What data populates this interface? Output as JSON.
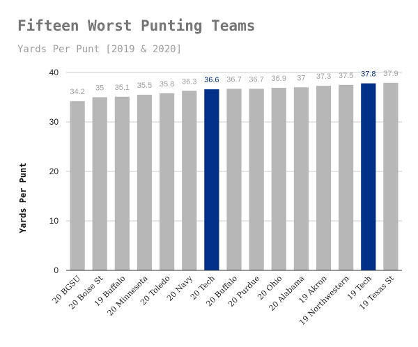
{
  "chart_data": {
    "type": "bar",
    "title": "Fifteen Worst Punting Teams",
    "subtitle": "Yards Per Punt [2019 & 2020]",
    "ylabel": "Yards Per Punt",
    "xlabel": "",
    "ylim": [
      0,
      40
    ],
    "yticks": [
      0,
      10,
      20,
      30,
      40
    ],
    "grid": true,
    "categories": [
      "20 BGSU",
      "20 Boise St",
      "19 Buffalo",
      "20 Minnesota",
      "20 Toledo",
      "20 Navy",
      "20 Tech",
      "20 Buffalo",
      "20 Purdue",
      "20 Ohio",
      "20 Alabama",
      "19 Akron",
      "19 Northwestern",
      "19 Tech",
      "19 Texas St"
    ],
    "values": [
      34.2,
      35,
      35.1,
      35.5,
      35.8,
      36.3,
      36.6,
      36.7,
      36.7,
      36.9,
      37,
      37.3,
      37.5,
      37.8,
      37.9
    ],
    "highlighted": [
      "20 Tech",
      "19 Tech"
    ],
    "colors": {
      "bar": "#b7b7b7",
      "highlight": "#003087",
      "label": "#9e9e9e",
      "highlight_label": "#003087",
      "grid": "#cccccc",
      "axis": "#333333"
    }
  }
}
